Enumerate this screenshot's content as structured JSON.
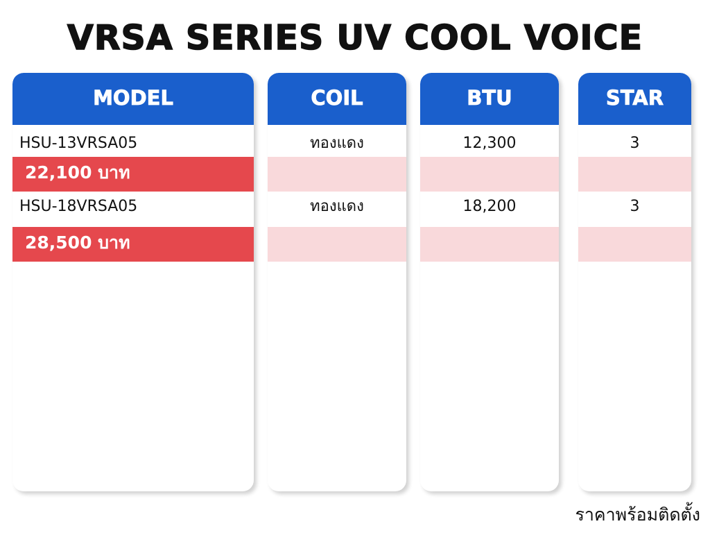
{
  "title": "VRSA SERIES UV COOL VOICE",
  "table": {
    "headers": [
      "MODEL",
      "COIL",
      "BTU",
      "STAR"
    ],
    "rows": [
      {
        "model": "HSU-13VRSA05",
        "coil": "ทองแดง",
        "btu": "12,300",
        "star": "3",
        "price": "22,100 บาท"
      },
      {
        "model": "HSU-18VRSA05",
        "coil": "ทองแดง",
        "btu": "18,200",
        "star": "3",
        "price": "28,500 บาท"
      }
    ]
  },
  "footnote": "ราคาพร้อมติดตั้ง"
}
